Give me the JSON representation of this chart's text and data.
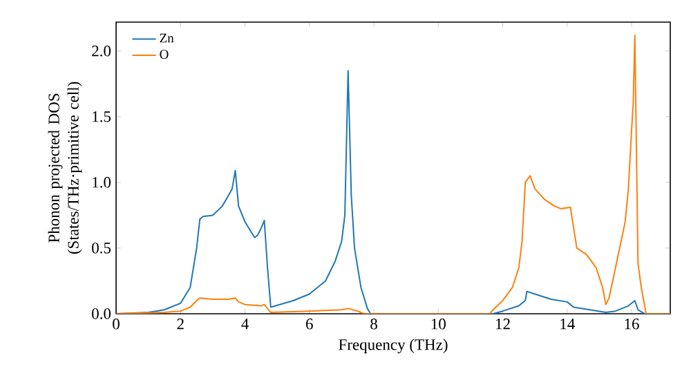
{
  "chart_data": {
    "type": "line",
    "xlabel": "Frequency (THz)",
    "ylabel": "Phonon projected DOS (States/THz·primitive cell)",
    "xlim": [
      0,
      17.2
    ],
    "ylim": [
      0,
      2.22
    ],
    "xticks": [
      0,
      2,
      4,
      6,
      8,
      10,
      12,
      14,
      16
    ],
    "yticks": [
      {
        "value": 0,
        "label": "0.0"
      },
      {
        "value": 0.5,
        "label": "0.5"
      },
      {
        "value": 1,
        "label": "1.0"
      },
      {
        "value": 1.5,
        "label": "1.5"
      },
      {
        "value": 2,
        "label": "2.0"
      }
    ],
    "legend": "top left",
    "grid": false,
    "series": [
      {
        "name": "Zn",
        "color": "#1f77b4",
        "x": [
          0,
          1,
          1.5,
          2,
          2.3,
          2.5,
          2.6,
          2.7,
          3,
          3.3,
          3.6,
          3.7,
          3.8,
          4,
          4.3,
          4.4,
          4.5,
          4.6,
          4.7,
          4.8,
          5.5,
          6,
          6.5,
          6.8,
          7,
          7.1,
          7.2,
          7.3,
          7.4,
          7.6,
          7.8,
          7.9,
          11.7,
          12,
          12.5,
          12.7,
          12.75,
          13,
          13.5,
          14,
          14.2,
          15.2,
          15.5,
          15.9,
          16.1,
          16.2,
          16.4,
          17.2
        ],
        "values": [
          0,
          0.01,
          0.03,
          0.08,
          0.2,
          0.5,
          0.72,
          0.74,
          0.75,
          0.82,
          0.95,
          1.09,
          0.82,
          0.7,
          0.58,
          0.6,
          0.65,
          0.71,
          0.35,
          0.05,
          0.1,
          0.15,
          0.25,
          0.4,
          0.55,
          0.75,
          1.85,
          0.9,
          0.5,
          0.2,
          0.04,
          0,
          0,
          0.02,
          0.06,
          0.1,
          0.17,
          0.15,
          0.11,
          0.09,
          0.05,
          0.01,
          0.02,
          0.06,
          0.1,
          0.03,
          0,
          0
        ]
      },
      {
        "name": "O",
        "color": "#ff7f0e",
        "x": [
          0,
          1.5,
          2,
          2.3,
          2.5,
          2.6,
          3,
          3.5,
          3.7,
          3.8,
          4,
          4.5,
          4.6,
          4.8,
          6,
          7,
          7.2,
          7.5,
          7.7,
          11.6,
          11.7,
          12,
          12.3,
          12.5,
          12.6,
          12.7,
          12.85,
          13,
          13.3,
          13.6,
          13.8,
          14.1,
          14.3,
          14.6,
          14.9,
          15.1,
          15.2,
          15.3,
          15.5,
          15.8,
          15.9,
          16.0,
          16.05,
          16.1,
          16.2,
          16.3,
          16.45,
          17.2
        ],
        "values": [
          0,
          0.01,
          0.02,
          0.05,
          0.1,
          0.12,
          0.11,
          0.11,
          0.12,
          0.09,
          0.07,
          0.06,
          0.07,
          0.01,
          0.02,
          0.03,
          0.04,
          0.02,
          0,
          0,
          0.03,
          0.1,
          0.2,
          0.35,
          0.55,
          1.0,
          1.05,
          0.95,
          0.87,
          0.82,
          0.8,
          0.81,
          0.5,
          0.45,
          0.35,
          0.2,
          0.07,
          0.12,
          0.35,
          0.7,
          0.95,
          1.4,
          1.6,
          2.12,
          0.38,
          0.2,
          0,
          0
        ]
      }
    ]
  }
}
